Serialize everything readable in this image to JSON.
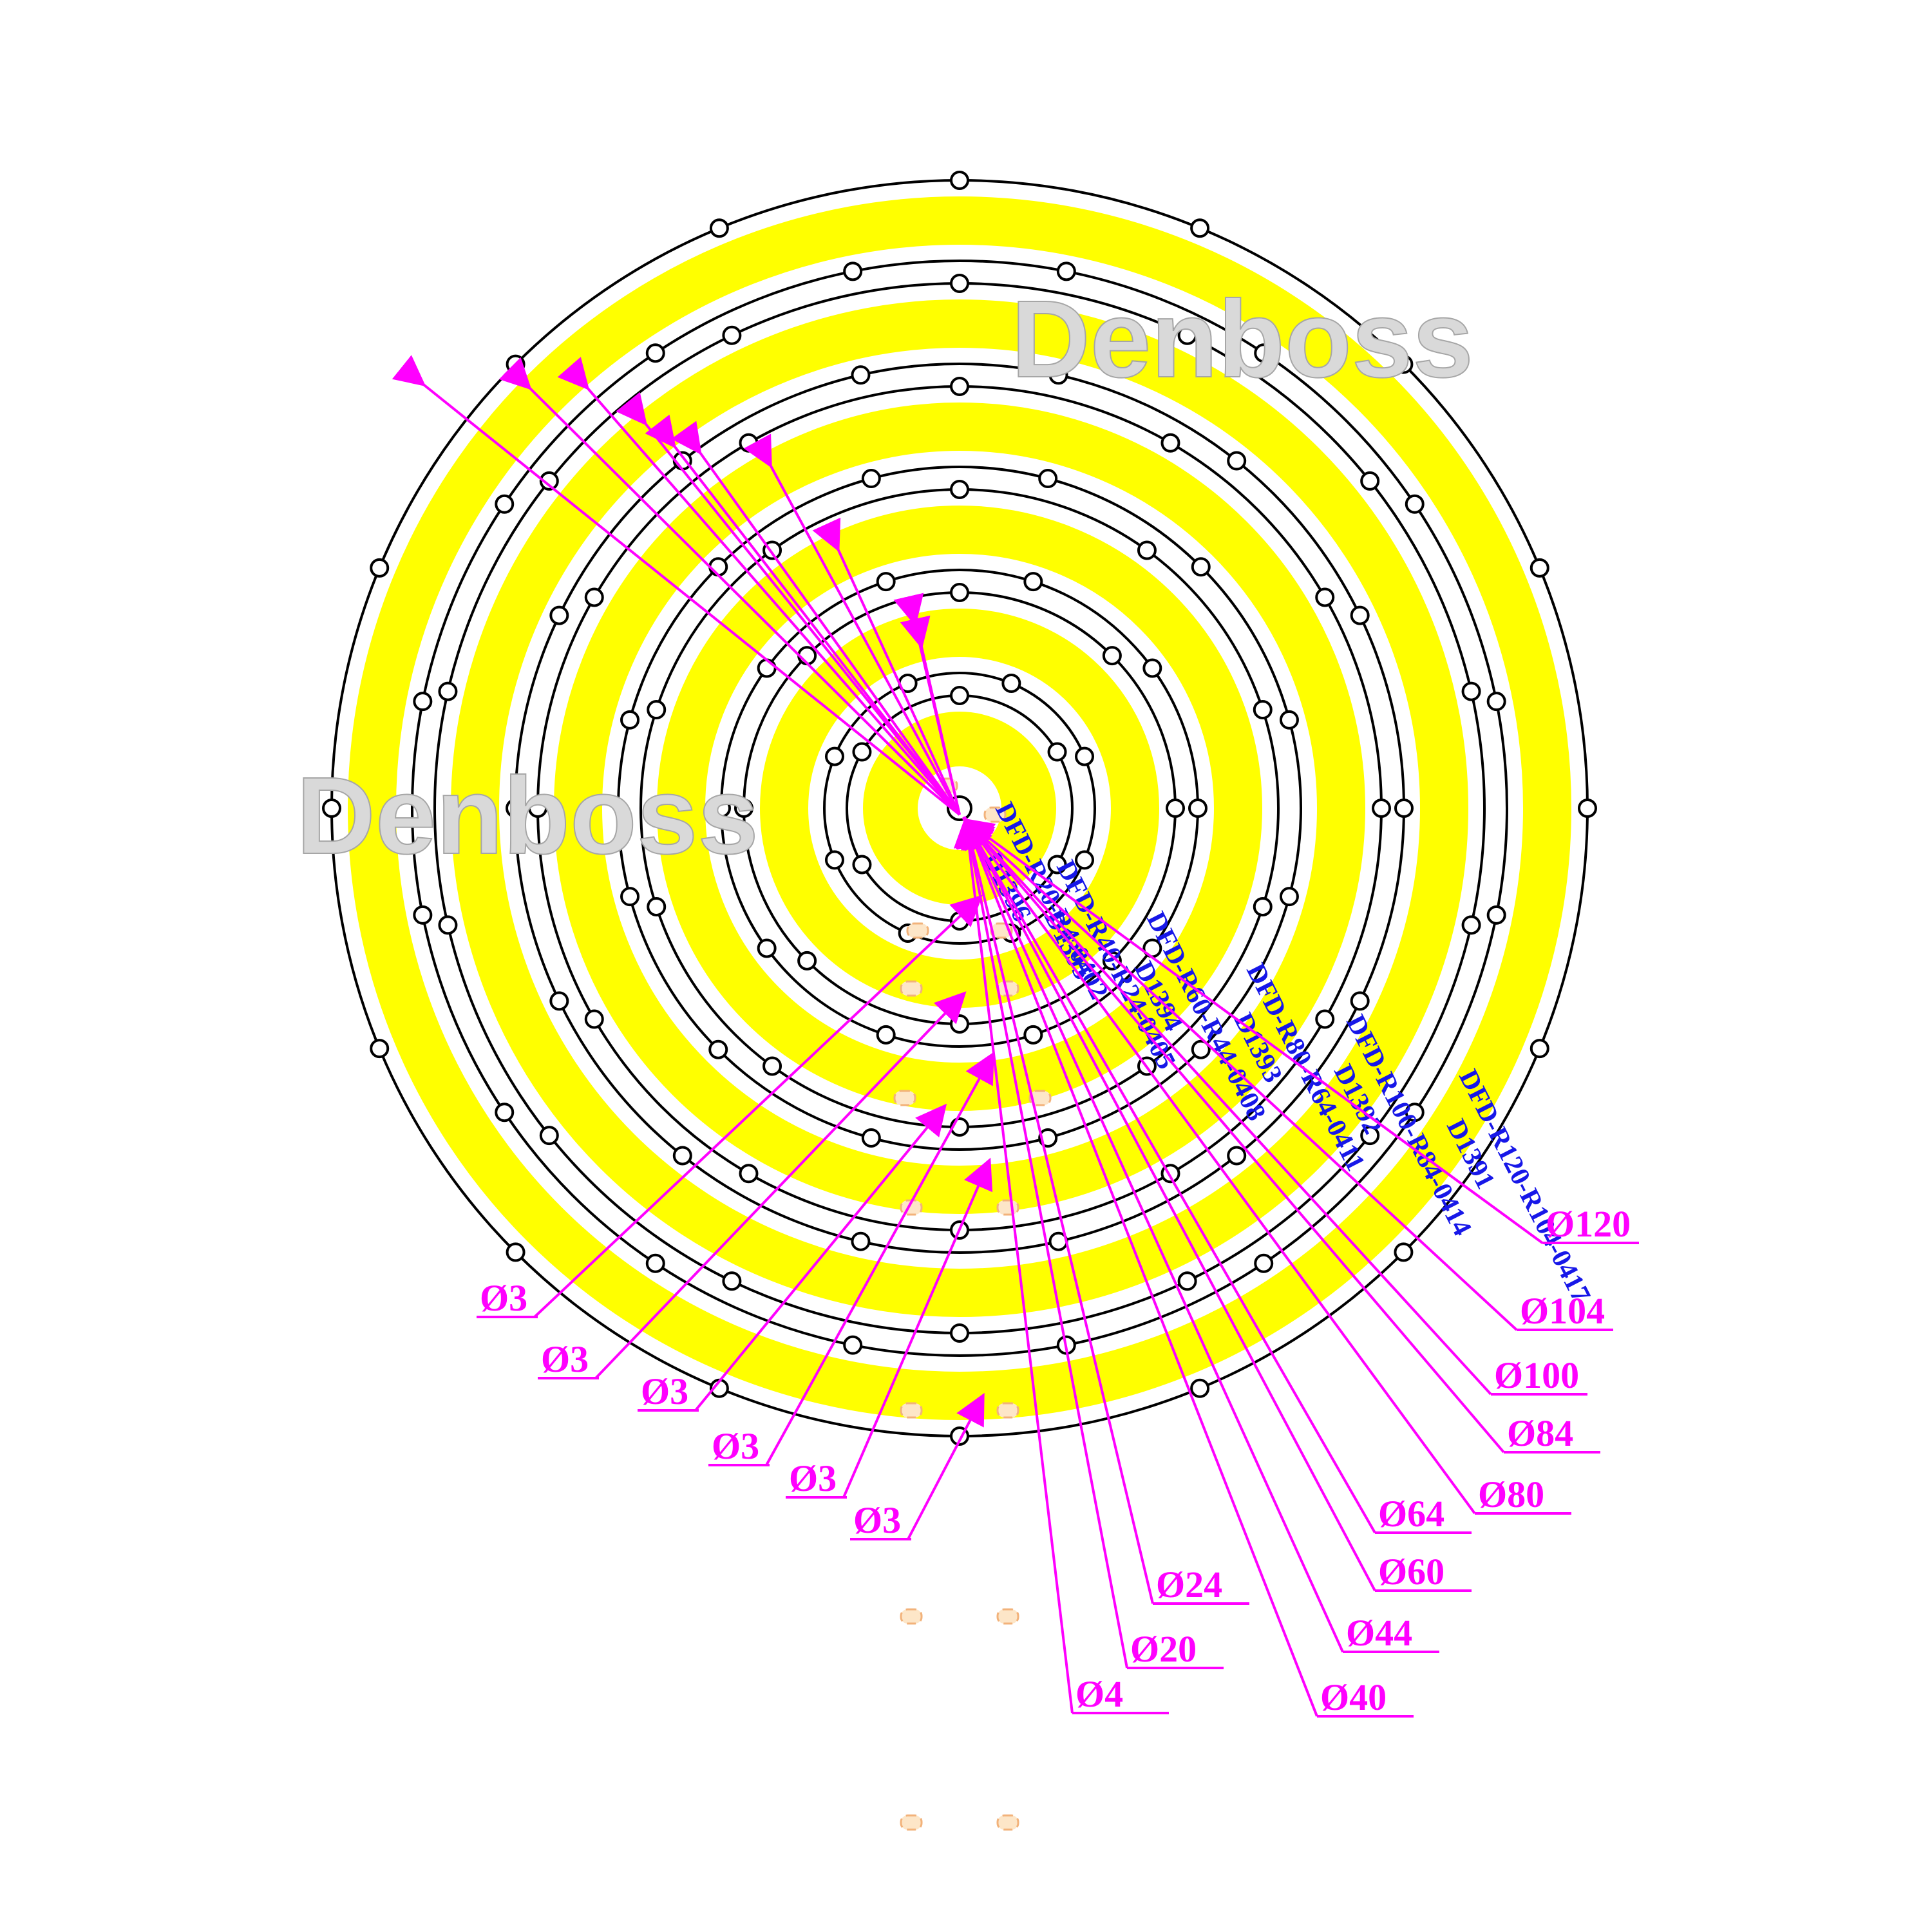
{
  "watermarks": [
    "Denboss",
    "Denboss"
  ],
  "colors": {
    "led": "#ffff00",
    "outline": "#000000",
    "dimension": "#ff00ff",
    "part_label": "#1717e8",
    "hole_fill": "#fde6c8"
  },
  "rings": [
    {
      "outer_diameter": "Ø120",
      "inner_diameter": "Ø104",
      "part_line1": "DFD-R120-R104-0417",
      "part_line2": "D1391"
    },
    {
      "outer_diameter": "Ø100",
      "inner_diameter": "Ø84",
      "part_line1": "DFD-R100-R84-0414",
      "part_line2": "D1392"
    },
    {
      "outer_diameter": "Ø80",
      "inner_diameter": "Ø64",
      "part_line1": "DFD-R80-R64-0411",
      "part_line2": "D1393"
    },
    {
      "outer_diameter": "Ø60",
      "inner_diameter": "Ø44",
      "part_line1": "DFD-R60-R44-0408",
      "part_line2": "D1394"
    },
    {
      "outer_diameter": "Ø40",
      "inner_diameter": "Ø24",
      "part_line1": "DFD-R40-R24-0405",
      "part_line2": "D1395"
    },
    {
      "outer_diameter": "Ø20",
      "inner_diameter": "Ø4",
      "part_line1": "DFD-R20-R4-0402",
      "part_line2": "D1396"
    }
  ],
  "right_dimensions": [
    "Ø120",
    "Ø104",
    "Ø100",
    "Ø84",
    "Ø80",
    "Ø64",
    "Ø60",
    "Ø44",
    "Ø40",
    "Ø24",
    "Ø20",
    "Ø4"
  ],
  "hole_dimensions": [
    "Ø3",
    "Ø3",
    "Ø3",
    "Ø3",
    "Ø3",
    "Ø3"
  ]
}
